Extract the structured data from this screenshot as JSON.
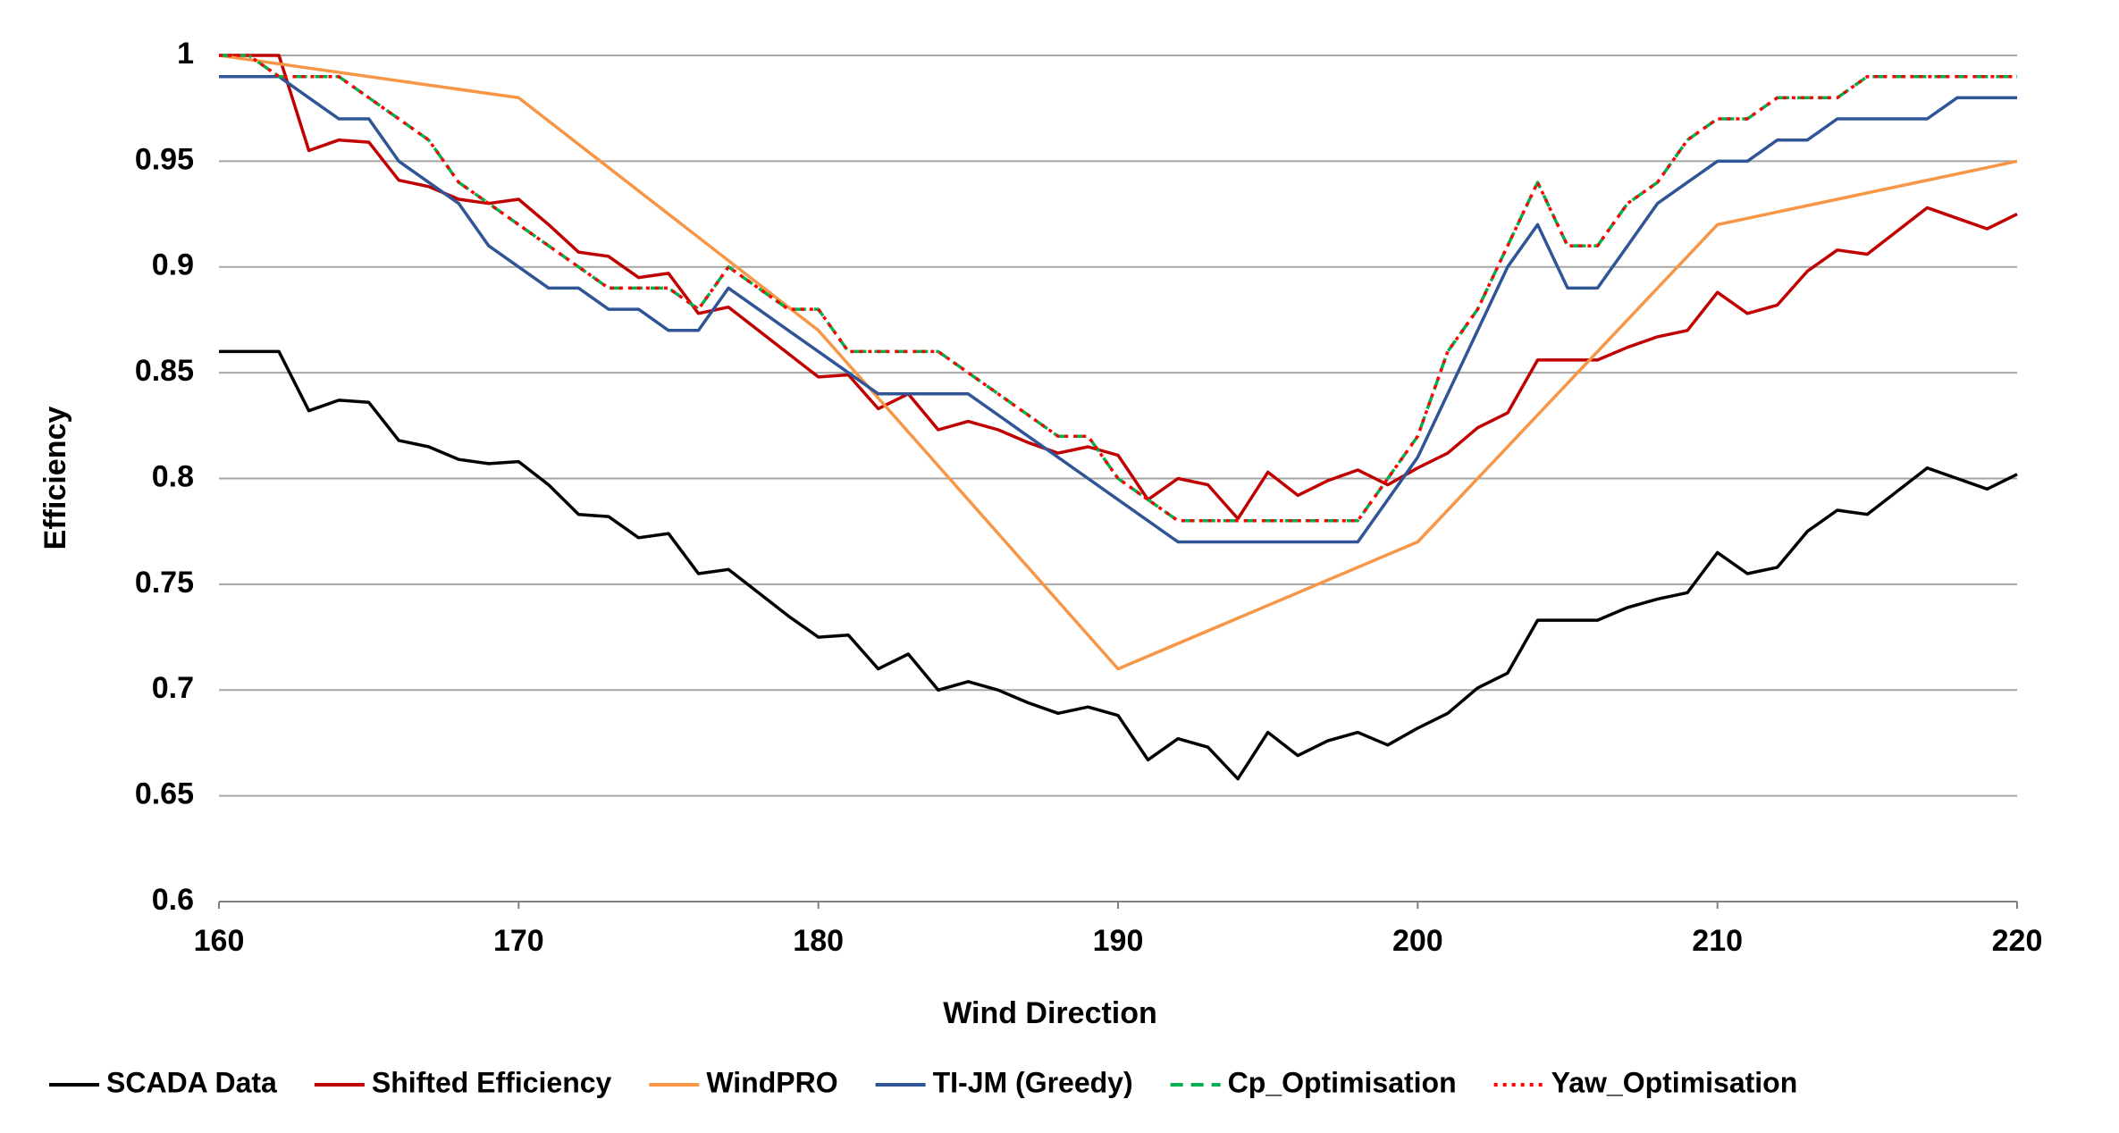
{
  "chart_data": {
    "type": "line",
    "x_label": "Wind Direction",
    "y_label": "Efficiency",
    "x": [
      160,
      161,
      162,
      163,
      164,
      165,
      166,
      167,
      168,
      169,
      170,
      171,
      172,
      173,
      174,
      175,
      176,
      177,
      178,
      179,
      180,
      181,
      182,
      183,
      184,
      185,
      186,
      187,
      188,
      189,
      190,
      191,
      192,
      193,
      194,
      195,
      196,
      197,
      198,
      199,
      200,
      201,
      202,
      203,
      204,
      205,
      206,
      207,
      208,
      209,
      210,
      211,
      212,
      213,
      214,
      215,
      216,
      217,
      218,
      219,
      220
    ],
    "xlim": [
      160,
      220
    ],
    "xticks": [
      160,
      170,
      180,
      190,
      200,
      210,
      220
    ],
    "ylim": [
      0.6,
      1
    ],
    "yticks": [
      0.6,
      0.65,
      0.7,
      0.75,
      0.8,
      0.85,
      0.9,
      0.95,
      1
    ],
    "grid": true,
    "legend": "bottom",
    "series": [
      {
        "name": "SCADA Data",
        "color": "#000000",
        "dash": "solid",
        "values": [
          0.86,
          0.86,
          0.86,
          0.832,
          0.837,
          0.836,
          0.818,
          0.815,
          0.809,
          0.807,
          0.808,
          0.797,
          0.783,
          0.782,
          0.772,
          0.774,
          0.755,
          0.757,
          0.746,
          0.735,
          0.725,
          0.726,
          0.71,
          0.717,
          0.7,
          0.704,
          0.7,
          0.694,
          0.689,
          0.692,
          0.688,
          0.667,
          0.677,
          0.673,
          0.658,
          0.68,
          0.669,
          0.676,
          0.68,
          0.674,
          0.682,
          0.689,
          0.701,
          0.708,
          0.733,
          0.733,
          0.733,
          0.739,
          0.743,
          0.746,
          0.765,
          0.755,
          0.758,
          0.775,
          0.785,
          0.783,
          0.794,
          0.805,
          0.8,
          0.795,
          0.802
        ]
      },
      {
        "name": "Shifted Efficiency",
        "color": "#c00000",
        "dash": "solid",
        "values": [
          1,
          1,
          1,
          0.955,
          0.96,
          0.959,
          0.941,
          0.938,
          0.932,
          0.93,
          0.932,
          0.92,
          0.907,
          0.905,
          0.895,
          0.897,
          0.878,
          0.881,
          0.87,
          0.859,
          0.848,
          0.849,
          0.833,
          0.84,
          0.823,
          0.827,
          0.823,
          0.817,
          0.812,
          0.815,
          0.811,
          0.79,
          0.8,
          0.797,
          0.781,
          0.803,
          0.792,
          0.799,
          0.804,
          0.797,
          0.805,
          0.812,
          0.824,
          0.831,
          0.856,
          0.856,
          0.856,
          0.862,
          0.867,
          0.87,
          0.888,
          0.878,
          0.882,
          0.898,
          0.908,
          0.906,
          0.917,
          0.928,
          0.923,
          0.918,
          0.925
        ]
      },
      {
        "name": "WindPRO",
        "color": "#f79646",
        "dash": "solid",
        "x": [
          160,
          170,
          180,
          190,
          200,
          210,
          220
        ],
        "values": [
          1,
          0.98,
          0.87,
          0.71,
          0.77,
          0.92,
          0.95
        ]
      },
      {
        "name": "TI-JM (Greedy)",
        "color": "#2f5597",
        "dash": "solid",
        "values": [
          0.99,
          0.99,
          0.99,
          0.98,
          0.97,
          0.97,
          0.95,
          0.94,
          0.93,
          0.91,
          0.9,
          0.89,
          0.89,
          0.88,
          0.88,
          0.87,
          0.87,
          0.89,
          0.88,
          0.87,
          0.86,
          0.85,
          0.84,
          0.84,
          0.84,
          0.84,
          0.83,
          0.82,
          0.81,
          0.8,
          0.79,
          0.78,
          0.77,
          0.77,
          0.77,
          0.77,
          0.77,
          0.77,
          0.77,
          0.79,
          0.81,
          0.84,
          0.87,
          0.9,
          0.92,
          0.89,
          0.89,
          0.91,
          0.93,
          0.94,
          0.95,
          0.95,
          0.96,
          0.96,
          0.97,
          0.97,
          0.97,
          0.97,
          0.98,
          0.98,
          0.98
        ]
      },
      {
        "name": "Cp_Optimisation",
        "color": "#00b050",
        "dash": "dashed",
        "values": [
          1,
          1,
          0.99,
          0.99,
          0.99,
          0.98,
          0.97,
          0.96,
          0.94,
          0.93,
          0.92,
          0.91,
          0.9,
          0.89,
          0.89,
          0.89,
          0.88,
          0.9,
          0.89,
          0.88,
          0.88,
          0.86,
          0.86,
          0.86,
          0.86,
          0.85,
          0.84,
          0.83,
          0.82,
          0.82,
          0.8,
          0.79,
          0.78,
          0.78,
          0.78,
          0.78,
          0.78,
          0.78,
          0.78,
          0.8,
          0.82,
          0.86,
          0.88,
          0.91,
          0.94,
          0.91,
          0.91,
          0.93,
          0.94,
          0.96,
          0.97,
          0.97,
          0.98,
          0.98,
          0.98,
          0.99,
          0.99,
          0.99,
          0.99,
          0.99,
          0.99
        ]
      },
      {
        "name": "Yaw_Optimisation",
        "color": "#ff0000",
        "dash": "dotted",
        "values": [
          1,
          1,
          0.99,
          0.99,
          0.99,
          0.98,
          0.97,
          0.96,
          0.94,
          0.93,
          0.92,
          0.91,
          0.9,
          0.89,
          0.89,
          0.89,
          0.88,
          0.9,
          0.89,
          0.88,
          0.88,
          0.86,
          0.86,
          0.86,
          0.86,
          0.85,
          0.84,
          0.83,
          0.82,
          0.82,
          0.8,
          0.79,
          0.78,
          0.78,
          0.78,
          0.78,
          0.78,
          0.78,
          0.78,
          0.8,
          0.82,
          0.86,
          0.88,
          0.91,
          0.94,
          0.91,
          0.91,
          0.93,
          0.94,
          0.96,
          0.97,
          0.97,
          0.98,
          0.98,
          0.98,
          0.99,
          0.99,
          0.99,
          0.99,
          0.99,
          0.99
        ]
      }
    ]
  }
}
